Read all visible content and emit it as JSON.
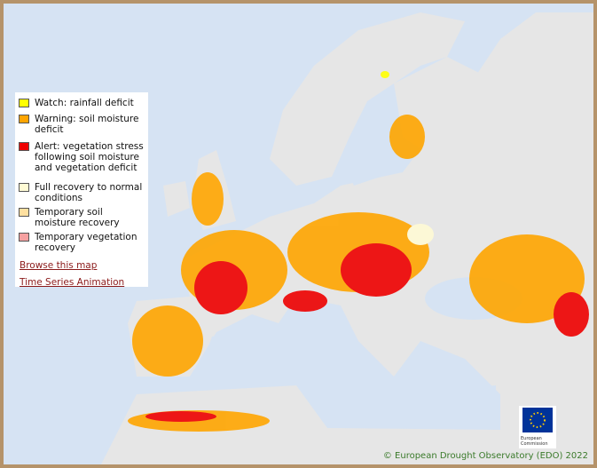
{
  "legend": {
    "items": [
      {
        "label": "Watch: rainfall deficit",
        "color": "#ffff00"
      },
      {
        "label": "Warning: soil moisture deficit",
        "color": "#ffa500"
      },
      {
        "label": "Alert: vegetation stress following soil moisture and vegetation deficit",
        "color": "#ee0000"
      },
      {
        "label": "Full recovery to normal conditions",
        "color": "#fffbd5"
      },
      {
        "label": "Temporary soil moisture recovery",
        "color": "#ffe0a0"
      },
      {
        "label": "Temporary vegetation recovery",
        "color": "#f5a0a0"
      }
    ],
    "links": [
      "Browse this map",
      "Time Series Animation"
    ]
  },
  "logo": {
    "label": "European Commission"
  },
  "credit": "© European Drought Observatory (EDO) 2022"
}
